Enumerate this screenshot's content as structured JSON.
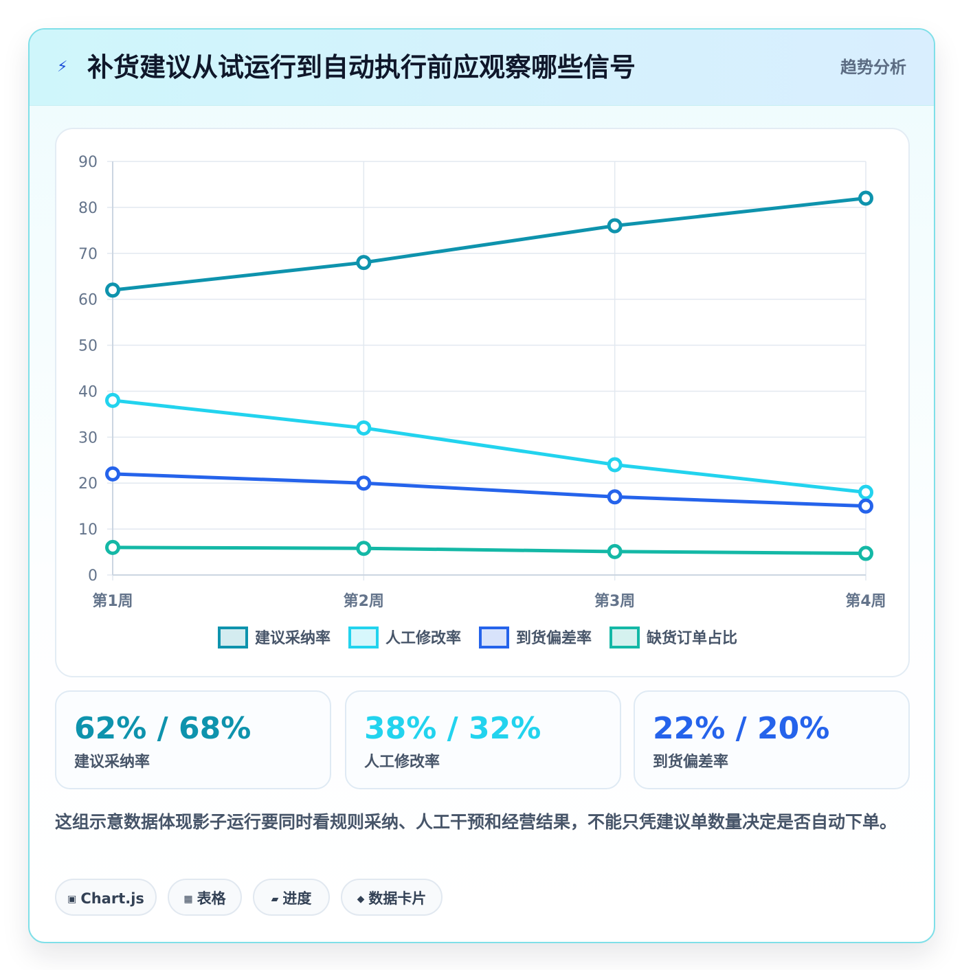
{
  "header": {
    "icon": "bolt-icon",
    "title": "补货建议从试运行到自动执行前应观察哪些信号",
    "tag": "趋势分析"
  },
  "chart_data": {
    "type": "line",
    "categories": [
      "第1周",
      "第2周",
      "第3周",
      "第4周"
    ],
    "ylim": [
      0,
      90
    ],
    "yticks": [
      0,
      10,
      20,
      30,
      40,
      50,
      60,
      70,
      80,
      90
    ],
    "grid": true,
    "legend_position": "bottom",
    "series": [
      {
        "name": "建议采纳率",
        "color": "#0e93ad",
        "values": [
          62,
          68,
          76,
          82
        ]
      },
      {
        "name": "人工修改率",
        "color": "#22d3ee",
        "values": [
          38,
          32,
          24,
          18
        ]
      },
      {
        "name": "到货偏差率",
        "color": "#2563eb",
        "values": [
          22,
          20,
          17,
          15
        ]
      },
      {
        "name": "缺货订单占比",
        "color": "#14b8a6",
        "values": [
          6,
          5.8,
          5.1,
          4.7
        ]
      }
    ]
  },
  "stats": [
    {
      "value": "62% / 68%",
      "label": "建议采纳率",
      "color": "#0e93ad"
    },
    {
      "value": "38% / 32%",
      "label": "人工修改率",
      "color": "#22d3ee"
    },
    {
      "value": "22% / 20%",
      "label": "到货偏差率",
      "color": "#2563eb"
    }
  ],
  "note": "这组示意数据体现影子运行要同时看规则采纳、人工干预和经营结果，不能只凭建议单数量决定是否自动下单。",
  "chips": [
    {
      "icon": "▣",
      "icon_name": "chart-icon",
      "label": "Chart.js"
    },
    {
      "icon": "▦",
      "icon_name": "table-icon",
      "label": "表格"
    },
    {
      "icon": "▰",
      "icon_name": "progress-icon",
      "label": "进度"
    },
    {
      "icon": "◆",
      "icon_name": "diamond-icon",
      "label": "数据卡片"
    }
  ]
}
